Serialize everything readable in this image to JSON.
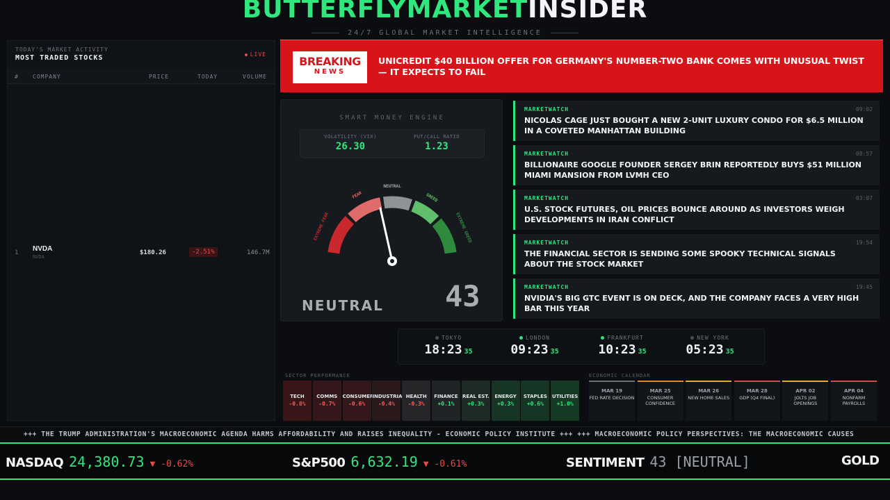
{
  "header": {
    "brand_green": "BUTTERFLYMARKET",
    "brand_white": "INSIDER",
    "tagline": "24/7 GLOBAL MARKET INTELLIGENCE"
  },
  "stocks_panel": {
    "subtitle": "TODAY'S MARKET ACTIVITY",
    "title": "MOST TRADED STOCKS",
    "live": "LIVE",
    "columns": [
      "#",
      "COMPANY",
      "PRICE",
      "TODAY",
      "VOLUME"
    ],
    "rows": [
      {
        "num": "1",
        "ticker": "NVDA",
        "ticker_sub": "NVDA",
        "price": "$180.26",
        "change": "-2.51%",
        "volume": "146.7M"
      }
    ]
  },
  "breaking": {
    "badge_top": "BREAKING",
    "badge_bottom": "NEWS",
    "headline": "UNICREDIT $40 BILLION OFFER FOR GERMANY'S NUMBER-TWO BANK COMES WITH UNUSUAL TWIST — IT EXPECTS TO FAIL"
  },
  "gauge": {
    "title": "SMART MONEY ENGINE",
    "vix_label": "VOLATILITY (VIX)",
    "vix_value": "26.30",
    "pcr_label": "PUT/CALL RATIO",
    "pcr_value": "1.23",
    "labels": {
      "extreme_fear": "EXTREME FEAR",
      "fear": "FEAR",
      "neutral": "NEUTRAL",
      "greed": "GREED",
      "extreme_greed": "EXTREME GREED"
    },
    "state": "NEUTRAL",
    "score": "43",
    "score_value": 43,
    "colors": {
      "extreme_fear": "#c9282d",
      "fear": "#e06b6b",
      "neutral": "#8f9396",
      "greed": "#5fbf6a",
      "extreme_greed": "#2e8b3e"
    }
  },
  "news": [
    {
      "source": "MARKETWATCH",
      "time": "09:02",
      "headline": "NICOLAS CAGE JUST BOUGHT A NEW 2-UNIT LUXURY CONDO FOR $6.5 MILLION IN A COVETED MANHATTAN BUILDING"
    },
    {
      "source": "MARKETWATCH",
      "time": "08:57",
      "headline": "BILLIONAIRE GOOGLE FOUNDER SERGEY BRIN REPORTEDLY BUYS $51 MILLION MIAMI MANSION FROM LVMH CEO"
    },
    {
      "source": "MARKETWATCH",
      "time": "03:07",
      "headline": "U.S. STOCK FUTURES, OIL PRICES BOUNCE AROUND AS INVESTORS WEIGH DEVELOPMENTS IN IRAN CONFLICT"
    },
    {
      "source": "MARKETWATCH",
      "time": "19:54",
      "headline": "THE FINANCIAL SECTOR IS SENDING SOME SPOOKY TECHNICAL SIGNALS ABOUT THE STOCK MARKET"
    },
    {
      "source": "MARKETWATCH",
      "time": "19:45",
      "headline": "NVIDIA'S BIG GTC EVENT IS ON DECK, AND THE COMPANY FACES A VERY HIGH BAR THIS YEAR"
    }
  ],
  "clocks": [
    {
      "city": "TOKYO",
      "time": "18:23",
      "sec": "35",
      "dot_color": "#4a4f55"
    },
    {
      "city": "LONDON",
      "time": "09:23",
      "sec": "35",
      "dot_color": "#2ee87d"
    },
    {
      "city": "FRANKFURT",
      "time": "10:23",
      "sec": "35",
      "dot_color": "#2ee87d"
    },
    {
      "city": "NEW YORK",
      "time": "05:23",
      "sec": "35",
      "dot_color": "#4a4f55"
    }
  ],
  "sectors": {
    "title": "SECTOR PERFORMANCE",
    "items": [
      {
        "name": "TECH",
        "pct": "-0.8%",
        "bg": "#3a1518",
        "color": "#ff5a5a"
      },
      {
        "name": "COMMS",
        "pct": "-0.7%",
        "bg": "#33171a",
        "color": "#ff5a5a"
      },
      {
        "name": "CONSUMER",
        "pct": "-0.6%",
        "bg": "#33171a",
        "color": "#ff5a5a"
      },
      {
        "name": "INDUSTRIAL",
        "pct": "-0.4%",
        "bg": "#2b1a1c",
        "color": "#ff5a5a"
      },
      {
        "name": "HEALTH",
        "pct": "-0.3%",
        "bg": "#262628",
        "color": "#ff5a5a"
      },
      {
        "name": "FINANCE",
        "pct": "+0.1%",
        "bg": "#1f2527",
        "color": "#2ee87d"
      },
      {
        "name": "REAL EST.",
        "pct": "+0.3%",
        "bg": "#1d2a25",
        "color": "#2ee87d"
      },
      {
        "name": "ENERGY",
        "pct": "+0.3%",
        "bg": "#163524",
        "color": "#2ee87d"
      },
      {
        "name": "STAPLES",
        "pct": "+0.6%",
        "bg": "#163524",
        "color": "#2ee87d"
      },
      {
        "name": "UTILITIES",
        "pct": "+1.0%",
        "bg": "#163a24",
        "color": "#2ee87d"
      }
    ]
  },
  "calendar": {
    "title": "ECONOMIC CALENDAR",
    "items": [
      {
        "date": "MAR 19",
        "event": "FED RATE DECISION",
        "accent": "#6b7078"
      },
      {
        "date": "MAR 25",
        "event": "CONSUMER CONFIDENCE",
        "accent": "#e08a2e"
      },
      {
        "date": "MAR 26",
        "event": "NEW HOME SALES",
        "accent": "#e0b02e"
      },
      {
        "date": "MAR 28",
        "event": "GDP (Q4 FINAL)",
        "accent": "#d84a4a"
      },
      {
        "date": "APR 02",
        "event": "JOLTS JOB OPENINGS",
        "accent": "#e0b02e"
      },
      {
        "date": "APR 04",
        "event": "NONFARM PAYROLLS",
        "accent": "#d84a4a"
      }
    ]
  },
  "crawl": "+++ THE TRUMP ADMINISTRATION'S MACROECONOMIC AGENDA HARMS AFFORDABILITY AND RAISES INEQUALITY - ECONOMIC POLICY INSTITUTE +++ +++ MACROECONOMIC POLICY PERSPECTIVES: THE MACROECONOMIC CAUSES",
  "ticker": [
    {
      "name": "NASDAQ",
      "value": "24,380.73",
      "change": "▼ -0.62%",
      "neutral": false
    },
    {
      "name": "S&P500",
      "value": "6,632.19",
      "change": "▼ -0.61%",
      "neutral": false
    },
    {
      "name": "SENTIMENT",
      "value": "43 [NEUTRAL]",
      "change": "",
      "neutral": true
    },
    {
      "name": "GOLD",
      "value": "",
      "change": "",
      "neutral": false
    }
  ],
  "accent": "#2ee87d"
}
